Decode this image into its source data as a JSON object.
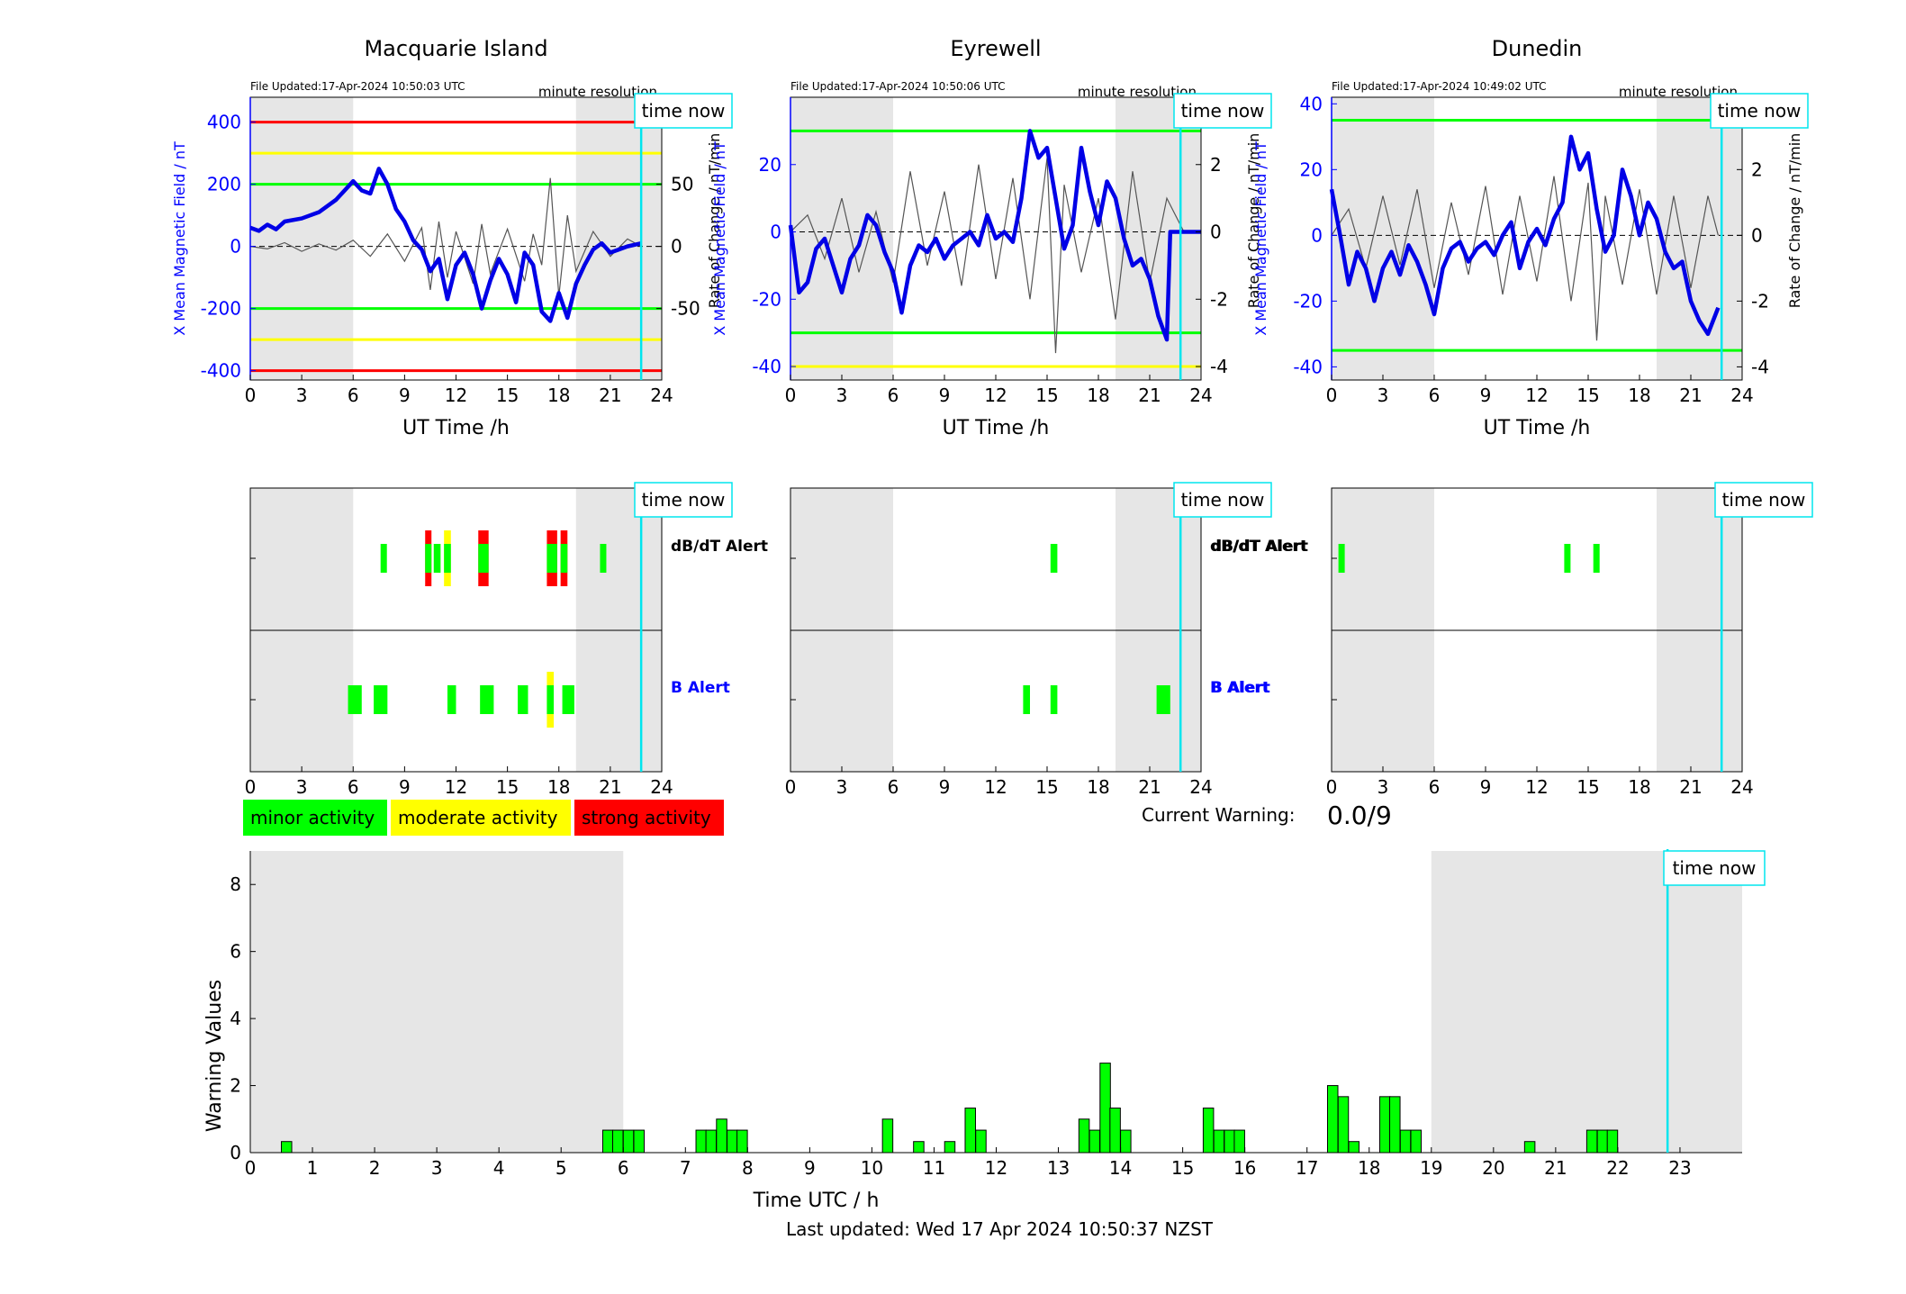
{
  "colors": {
    "shade": "#e6e6e6",
    "minor": "#00ff00",
    "moderate": "#ffff00",
    "strong": "#ff0000",
    "field_line": "#0000e6",
    "rate_line": "#555555",
    "time_now": "#00e5ee",
    "axis_blue": "#0000ff"
  },
  "common": {
    "xlabel": "UT Time /h",
    "x_ticks": [
      0,
      3,
      6,
      9,
      12,
      15,
      18,
      21,
      24
    ],
    "resolution_label": "minute resolution",
    "time_now_label": "time now",
    "time_now_h": 22.8,
    "night_shade": [
      [
        0,
        6
      ],
      [
        19,
        24
      ]
    ],
    "ylabel_left": "X Mean Magnetic Field / nT",
    "ylabel_right": "Rate of Change / nT/min",
    "dbdt_label": "dB/dT Alert",
    "b_label": "B Alert"
  },
  "stations": [
    {
      "name": "Macquarie Island",
      "updated": "File Updated:17-Apr-2024 10:50:03 UTC",
      "field_ylim": [
        -430,
        480
      ],
      "field_ticks": [
        -400,
        -200,
        0,
        200,
        400
      ],
      "rate_ticks": [
        -50,
        0,
        50
      ],
      "rate_scale": 8,
      "thresholds": [
        {
          "value": 400,
          "level": "strong"
        },
        {
          "value": -400,
          "level": "strong"
        },
        {
          "value": 300,
          "level": "moderate"
        },
        {
          "value": -300,
          "level": "moderate"
        },
        {
          "value": 200,
          "level": "minor"
        },
        {
          "value": -200,
          "level": "minor"
        }
      ],
      "field_series": [
        [
          0,
          60
        ],
        [
          0.5,
          50
        ],
        [
          1,
          70
        ],
        [
          1.5,
          55
        ],
        [
          2,
          80
        ],
        [
          3,
          90
        ],
        [
          4,
          110
        ],
        [
          5,
          150
        ],
        [
          6,
          210
        ],
        [
          6.5,
          180
        ],
        [
          7,
          170
        ],
        [
          7.5,
          250
        ],
        [
          8,
          200
        ],
        [
          8.5,
          120
        ],
        [
          9,
          80
        ],
        [
          9.5,
          20
        ],
        [
          10,
          -10
        ],
        [
          10.5,
          -80
        ],
        [
          11,
          -40
        ],
        [
          11.5,
          -170
        ],
        [
          12,
          -60
        ],
        [
          12.5,
          -20
        ],
        [
          13,
          -90
        ],
        [
          13.5,
          -200
        ],
        [
          14,
          -110
        ],
        [
          14.5,
          -40
        ],
        [
          15,
          -90
        ],
        [
          15.5,
          -180
        ],
        [
          16,
          -20
        ],
        [
          16.5,
          -60
        ],
        [
          17,
          -210
        ],
        [
          17.5,
          -240
        ],
        [
          18,
          -150
        ],
        [
          18.5,
          -230
        ],
        [
          19,
          -120
        ],
        [
          19.5,
          -60
        ],
        [
          20,
          -10
        ],
        [
          20.5,
          10
        ],
        [
          21,
          -20
        ],
        [
          21.5,
          -10
        ],
        [
          22,
          0
        ],
        [
          22.8,
          10
        ]
      ],
      "rate_series": [
        [
          0,
          0
        ],
        [
          1,
          -2
        ],
        [
          2,
          3
        ],
        [
          3,
          -4
        ],
        [
          4,
          2
        ],
        [
          5,
          -3
        ],
        [
          6,
          5
        ],
        [
          7,
          -8
        ],
        [
          8,
          10
        ],
        [
          9,
          -12
        ],
        [
          10,
          15
        ],
        [
          10.5,
          -35
        ],
        [
          11,
          20
        ],
        [
          11.5,
          -25
        ],
        [
          12,
          12
        ],
        [
          13,
          -30
        ],
        [
          13.5,
          18
        ],
        [
          14,
          -22
        ],
        [
          15,
          14
        ],
        [
          16,
          -28
        ],
        [
          16.5,
          10
        ],
        [
          17,
          -15
        ],
        [
          17.5,
          55
        ],
        [
          18,
          -40
        ],
        [
          18.5,
          25
        ],
        [
          19,
          -20
        ],
        [
          20,
          12
        ],
        [
          21,
          -8
        ],
        [
          22,
          6
        ],
        [
          22.8,
          0
        ]
      ],
      "dbdt_alerts": [
        {
          "start": 7.6,
          "end": 7.9,
          "level": "minor"
        },
        {
          "start": 10.2,
          "end": 10.5,
          "level": "strong"
        },
        {
          "start": 10.7,
          "end": 11.1,
          "level": "minor"
        },
        {
          "start": 11.3,
          "end": 11.7,
          "level": "moderate"
        },
        {
          "start": 13.3,
          "end": 13.9,
          "level": "strong"
        },
        {
          "start": 17.3,
          "end": 17.9,
          "level": "strong"
        },
        {
          "start": 18.1,
          "end": 18.5,
          "level": "strong"
        },
        {
          "start": 20.4,
          "end": 20.7,
          "level": "minor"
        }
      ],
      "b_alerts": [
        {
          "start": 5.7,
          "end": 6.5,
          "level": "minor"
        },
        {
          "start": 7.2,
          "end": 8.0,
          "level": "minor"
        },
        {
          "start": 11.5,
          "end": 12.0,
          "level": "minor"
        },
        {
          "start": 13.4,
          "end": 14.2,
          "level": "minor"
        },
        {
          "start": 15.6,
          "end": 16.2,
          "level": "minor"
        },
        {
          "start": 17.3,
          "end": 17.7,
          "level": "moderate"
        },
        {
          "start": 18.2,
          "end": 18.9,
          "level": "minor"
        }
      ]
    },
    {
      "name": "Eyrewell",
      "updated": "File Updated:17-Apr-2024 10:50:06 UTC",
      "field_ylim": [
        -44,
        40
      ],
      "field_ticks": [
        -40,
        -20,
        0,
        20
      ],
      "rate_ticks": [
        -4,
        -2,
        0,
        2
      ],
      "rate_scale": 10,
      "thresholds": [
        {
          "value": 30,
          "level": "minor"
        },
        {
          "value": -30,
          "level": "minor"
        },
        {
          "value": -40,
          "level": "moderate"
        }
      ],
      "field_series": [
        [
          0,
          2
        ],
        [
          0.5,
          -18
        ],
        [
          1,
          -15
        ],
        [
          1.5,
          -5
        ],
        [
          2,
          -2
        ],
        [
          2.5,
          -10
        ],
        [
          3,
          -18
        ],
        [
          3.5,
          -8
        ],
        [
          4,
          -4
        ],
        [
          4.5,
          5
        ],
        [
          5,
          2
        ],
        [
          5.5,
          -6
        ],
        [
          6,
          -12
        ],
        [
          6.5,
          -24
        ],
        [
          7,
          -10
        ],
        [
          7.5,
          -4
        ],
        [
          8,
          -6
        ],
        [
          8.5,
          -2
        ],
        [
          9,
          -8
        ],
        [
          9.5,
          -4
        ],
        [
          10,
          -2
        ],
        [
          10.5,
          0
        ],
        [
          11,
          -4
        ],
        [
          11.5,
          5
        ],
        [
          12,
          -2
        ],
        [
          12.5,
          0
        ],
        [
          13,
          -3
        ],
        [
          13.5,
          10
        ],
        [
          14,
          30
        ],
        [
          14.5,
          22
        ],
        [
          15,
          25
        ],
        [
          15.5,
          10
        ],
        [
          16,
          -5
        ],
        [
          16.5,
          2
        ],
        [
          17,
          25
        ],
        [
          17.5,
          12
        ],
        [
          18,
          2
        ],
        [
          18.5,
          15
        ],
        [
          19,
          10
        ],
        [
          19.5,
          -2
        ],
        [
          20,
          -10
        ],
        [
          20.5,
          -8
        ],
        [
          21,
          -14
        ],
        [
          21.5,
          -25
        ],
        [
          22,
          -32
        ],
        [
          22.2,
          0
        ],
        [
          24,
          0
        ]
      ],
      "rate_series": [
        [
          0,
          0
        ],
        [
          1,
          0.5
        ],
        [
          2,
          -0.8
        ],
        [
          3,
          1
        ],
        [
          4,
          -1.2
        ],
        [
          5,
          0.6
        ],
        [
          6,
          -1.5
        ],
        [
          7,
          1.8
        ],
        [
          8,
          -1
        ],
        [
          9,
          1.2
        ],
        [
          10,
          -1.6
        ],
        [
          11,
          2
        ],
        [
          12,
          -1.4
        ],
        [
          13,
          1.6
        ],
        [
          14,
          -2
        ],
        [
          15,
          2.2
        ],
        [
          15.5,
          -3.6
        ],
        [
          16,
          1.4
        ],
        [
          17,
          -1.2
        ],
        [
          18,
          1
        ],
        [
          19,
          -2.6
        ],
        [
          20,
          1.8
        ],
        [
          21,
          -1.5
        ],
        [
          22,
          1
        ],
        [
          23,
          0
        ],
        [
          24,
          0
        ]
      ],
      "dbdt_alerts": [
        {
          "start": 15.2,
          "end": 15.6,
          "level": "minor"
        }
      ],
      "b_alerts": [
        {
          "start": 13.6,
          "end": 14.0,
          "level": "minor"
        },
        {
          "start": 15.2,
          "end": 15.6,
          "level": "minor"
        },
        {
          "start": 21.4,
          "end": 22.2,
          "level": "minor"
        }
      ]
    },
    {
      "name": "Dunedin",
      "updated": "File Updated:17-Apr-2024 10:49:02 UTC",
      "field_ylim": [
        -44,
        42
      ],
      "field_ticks": [
        -40,
        -20,
        0,
        20,
        40
      ],
      "rate_ticks": [
        -4,
        -2,
        0,
        2,
        4
      ],
      "rate_scale": 10,
      "thresholds": [
        {
          "value": 35,
          "level": "minor"
        },
        {
          "value": -35,
          "level": "minor"
        }
      ],
      "field_series": [
        [
          0,
          14
        ],
        [
          0.5,
          0
        ],
        [
          1,
          -15
        ],
        [
          1.5,
          -5
        ],
        [
          2,
          -10
        ],
        [
          2.5,
          -20
        ],
        [
          3,
          -10
        ],
        [
          3.5,
          -5
        ],
        [
          4,
          -12
        ],
        [
          4.5,
          -3
        ],
        [
          5,
          -8
        ],
        [
          5.5,
          -15
        ],
        [
          6,
          -24
        ],
        [
          6.5,
          -10
        ],
        [
          7,
          -4
        ],
        [
          7.5,
          -2
        ],
        [
          8,
          -8
        ],
        [
          8.5,
          -4
        ],
        [
          9,
          -2
        ],
        [
          9.5,
          -6
        ],
        [
          10,
          0
        ],
        [
          10.5,
          4
        ],
        [
          11,
          -10
        ],
        [
          11.5,
          -2
        ],
        [
          12,
          2
        ],
        [
          12.5,
          -3
        ],
        [
          13,
          5
        ],
        [
          13.5,
          10
        ],
        [
          14,
          30
        ],
        [
          14.5,
          20
        ],
        [
          15,
          25
        ],
        [
          15.5,
          8
        ],
        [
          16,
          -5
        ],
        [
          16.5,
          0
        ],
        [
          17,
          20
        ],
        [
          17.5,
          12
        ],
        [
          18,
          0
        ],
        [
          18.5,
          10
        ],
        [
          19,
          5
        ],
        [
          19.5,
          -5
        ],
        [
          20,
          -10
        ],
        [
          20.5,
          -8
        ],
        [
          21,
          -20
        ],
        [
          21.5,
          -26
        ],
        [
          22,
          -30
        ],
        [
          22.6,
          -22
        ]
      ],
      "rate_series": [
        [
          0,
          0
        ],
        [
          1,
          0.8
        ],
        [
          2,
          -1
        ],
        [
          3,
          1.2
        ],
        [
          4,
          -0.9
        ],
        [
          5,
          1.4
        ],
        [
          6,
          -1.6
        ],
        [
          7,
          1
        ],
        [
          8,
          -1.2
        ],
        [
          9,
          1.5
        ],
        [
          10,
          -1.8
        ],
        [
          11,
          1.2
        ],
        [
          12,
          -1.4
        ],
        [
          13,
          1.8
        ],
        [
          14,
          -2
        ],
        [
          15,
          1.6
        ],
        [
          15.5,
          -3.2
        ],
        [
          16,
          1.2
        ],
        [
          17,
          -1.5
        ],
        [
          18,
          1.4
        ],
        [
          19,
          -1.8
        ],
        [
          20,
          1.2
        ],
        [
          21,
          -1.6
        ],
        [
          22,
          1.2
        ],
        [
          22.6,
          0
        ]
      ],
      "dbdt_alerts": [
        {
          "start": 0.4,
          "end": 0.7,
          "level": "minor"
        },
        {
          "start": 13.6,
          "end": 13.9,
          "level": "minor"
        },
        {
          "start": 15.3,
          "end": 15.6,
          "level": "minor"
        }
      ],
      "b_alerts": []
    }
  ],
  "legend": [
    {
      "label": "minor activity",
      "level": "minor"
    },
    {
      "label": "moderate activity",
      "level": "moderate"
    },
    {
      "label": "strong activity",
      "level": "strong"
    }
  ],
  "current_warning": {
    "label": "Current Warning:",
    "value": "0.0/9"
  },
  "chart_data": {
    "type": "bar",
    "xlabel": "Time UTC / h",
    "ylabel": "Warning Values",
    "xlim": [
      0,
      24
    ],
    "ylim": [
      0,
      9
    ],
    "x_ticks": [
      0,
      1,
      2,
      3,
      4,
      5,
      6,
      7,
      8,
      9,
      10,
      11,
      12,
      13,
      14,
      15,
      16,
      17,
      18,
      19,
      20,
      21,
      22,
      23
    ],
    "y_ticks": [
      0,
      2,
      4,
      6,
      8
    ],
    "bar_width_h": 0.1667,
    "night_shade": [
      [
        0,
        6
      ],
      [
        19,
        24
      ]
    ],
    "time_now_h": 22.8,
    "time_now_label": "time now",
    "bars": [
      {
        "x": 0.5,
        "value": 0.33
      },
      {
        "x": 5.67,
        "value": 0.67
      },
      {
        "x": 5.83,
        "value": 0.67
      },
      {
        "x": 6.0,
        "value": 0.67
      },
      {
        "x": 6.17,
        "value": 0.67
      },
      {
        "x": 7.17,
        "value": 0.67
      },
      {
        "x": 7.33,
        "value": 0.67
      },
      {
        "x": 7.5,
        "value": 1.0
      },
      {
        "x": 7.67,
        "value": 0.67
      },
      {
        "x": 7.83,
        "value": 0.67
      },
      {
        "x": 10.17,
        "value": 1.0
      },
      {
        "x": 10.67,
        "value": 0.33
      },
      {
        "x": 11.17,
        "value": 0.33
      },
      {
        "x": 11.5,
        "value": 1.33
      },
      {
        "x": 11.67,
        "value": 0.67
      },
      {
        "x": 13.33,
        "value": 1.0
      },
      {
        "x": 13.5,
        "value": 0.67
      },
      {
        "x": 13.67,
        "value": 2.67
      },
      {
        "x": 13.83,
        "value": 1.33
      },
      {
        "x": 14.0,
        "value": 0.67
      },
      {
        "x": 15.33,
        "value": 1.33
      },
      {
        "x": 15.5,
        "value": 0.67
      },
      {
        "x": 15.67,
        "value": 0.67
      },
      {
        "x": 15.83,
        "value": 0.67
      },
      {
        "x": 17.33,
        "value": 2.0
      },
      {
        "x": 17.5,
        "value": 1.67
      },
      {
        "x": 17.67,
        "value": 0.33
      },
      {
        "x": 18.17,
        "value": 1.67
      },
      {
        "x": 18.33,
        "value": 1.67
      },
      {
        "x": 18.5,
        "value": 0.67
      },
      {
        "x": 18.67,
        "value": 0.67
      },
      {
        "x": 20.5,
        "value": 0.33
      },
      {
        "x": 21.5,
        "value": 0.67
      },
      {
        "x": 21.67,
        "value": 0.67
      },
      {
        "x": 21.83,
        "value": 0.67
      }
    ]
  },
  "footer": {
    "last_updated": "Last updated: Wed 17 Apr 2024 10:50:37 NZST"
  }
}
